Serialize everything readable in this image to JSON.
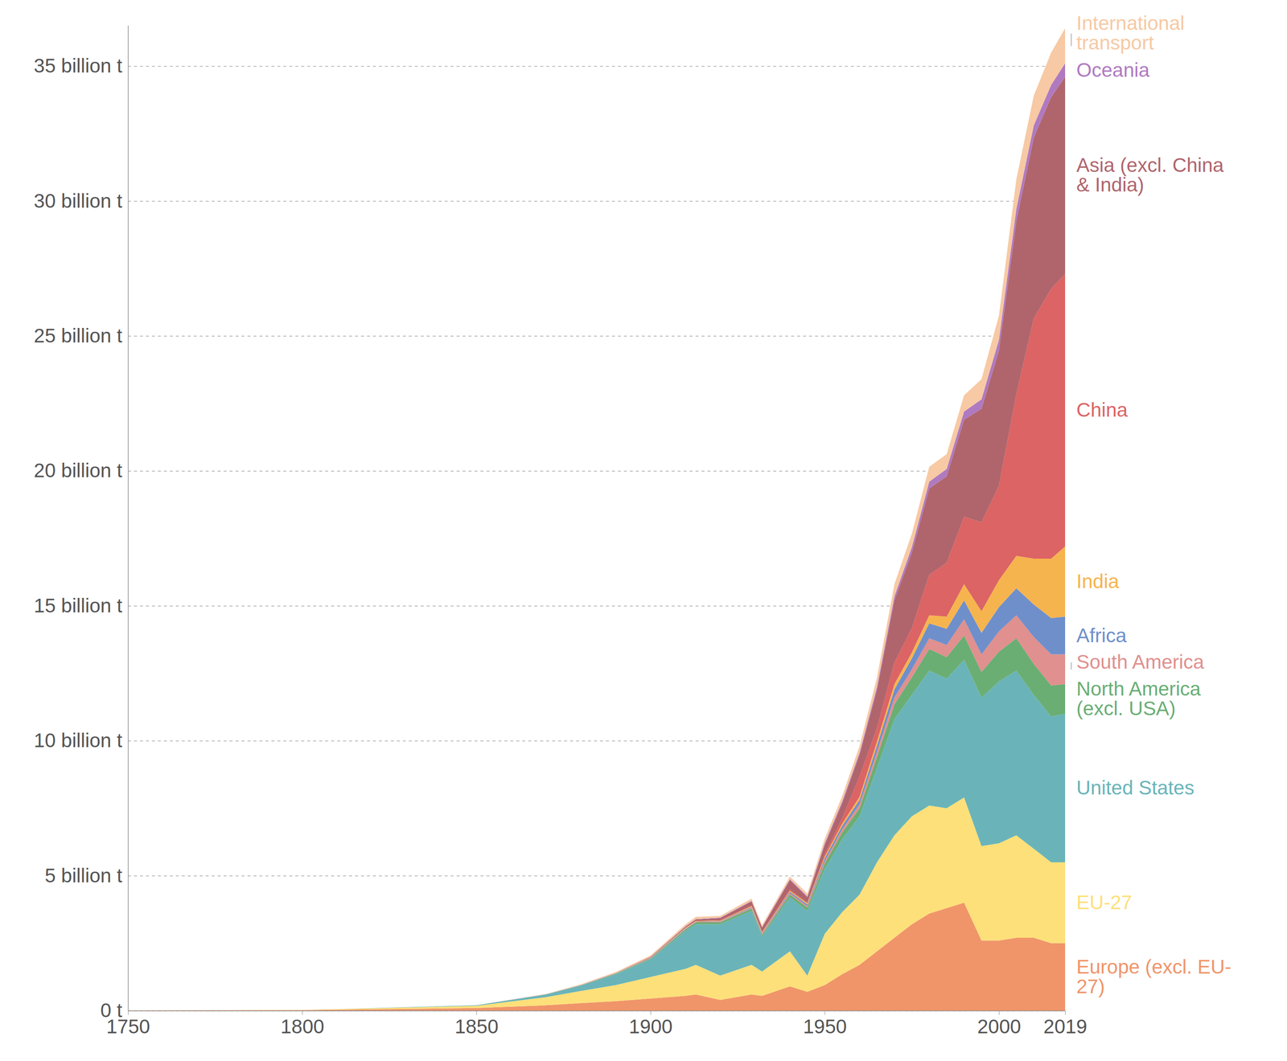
{
  "chart_data": {
    "type": "area",
    "stacked": true,
    "grid": true,
    "x": [
      1750,
      1800,
      1850,
      1870,
      1880,
      1890,
      1900,
      1910,
      1913,
      1920,
      1929,
      1932,
      1940,
      1945,
      1950,
      1955,
      1960,
      1965,
      1970,
      1975,
      1980,
      1985,
      1990,
      1995,
      2000,
      2005,
      2010,
      2015,
      2019
    ],
    "xlim": [
      1750,
      2019
    ],
    "xticks": [
      1750,
      1800,
      1850,
      1900,
      1950,
      2000,
      2019
    ],
    "ylim": [
      0,
      36500000000.0
    ],
    "yticks": [
      {
        "value": 0,
        "label": "0 t"
      },
      {
        "value": 5000000000.0,
        "label": "5 billion t"
      },
      {
        "value": 10000000000.0,
        "label": "10 billion t"
      },
      {
        "value": 15000000000.0,
        "label": "15 billion t"
      },
      {
        "value": 20000000000.0,
        "label": "20 billion t"
      },
      {
        "value": 25000000000.0,
        "label": "25 billion t"
      },
      {
        "value": 30000000000.0,
        "label": "30 billion t"
      },
      {
        "value": 35000000000.0,
        "label": "35 billion t"
      }
    ],
    "series": [
      {
        "name": "Europe (excl. EU-27)",
        "color": "#f0956a",
        "values": [
          9000000.0,
          20000000.0,
          100000000.0,
          200000000.0,
          280000000.0,
          350000000.0,
          450000000.0,
          550000000.0,
          600000000.0,
          400000000.0,
          600000000.0,
          550000000.0,
          900000000.0,
          700000000.0,
          950000000.0,
          1350000000.0,
          1700000000.0,
          2200000000.0,
          2700000000.0,
          3200000000.0,
          3600000000.0,
          3800000000.0,
          4000000000.0,
          2600000000.0,
          2600000000.0,
          2700000000.0,
          2700000000.0,
          2500000000.0,
          2500000000.0
        ]
      },
      {
        "name": "EU-27",
        "color": "#fde07a",
        "values": [
          0,
          5000000.0,
          80000000.0,
          300000000.0,
          450000000.0,
          600000000.0,
          800000000.0,
          1000000000.0,
          1100000000.0,
          900000000.0,
          1100000000.0,
          900000000.0,
          1300000000.0,
          600000000.0,
          1900000000.0,
          2300000000.0,
          2600000000.0,
          3300000000.0,
          3800000000.0,
          4000000000.0,
          4000000000.0,
          3700000000.0,
          3900000000.0,
          3500000000.0,
          3600000000.0,
          3800000000.0,
          3300000000.0,
          3000000000.0,
          3000000000.0
        ]
      },
      {
        "name": "United States",
        "color": "#6ab4b9",
        "values": [
          0,
          500000.0,
          20000000.0,
          100000000.0,
          200000000.0,
          400000000.0,
          650000000.0,
          1400000000.0,
          1500000000.0,
          1900000000.0,
          2000000000.0,
          1300000000.0,
          2000000000.0,
          2400000000.0,
          2400000000.0,
          2700000000.0,
          2900000000.0,
          3500000000.0,
          4300000000.0,
          4500000000.0,
          5000000000.0,
          4800000000.0,
          5100000000.0,
          5500000000.0,
          6000000000.0,
          6100000000.0,
          5700000000.0,
          5400000000.0,
          5500000000.0
        ]
      },
      {
        "name": "North America (excl. USA)",
        "color": "#6aae74",
        "values": [
          0,
          0,
          1000000.0,
          5000000.0,
          10000000.0,
          20000000.0,
          30000000.0,
          60000000.0,
          70000000.0,
          70000000.0,
          80000000.0,
          60000000.0,
          100000000.0,
          120000000.0,
          200000000.0,
          250000000.0,
          300000000.0,
          400000000.0,
          550000000.0,
          650000000.0,
          800000000.0,
          800000000.0,
          900000000.0,
          950000000.0,
          1100000000.0,
          1200000000.0,
          1150000000.0,
          1150000000.0,
          1100000000.0
        ]
      },
      {
        "name": "South America",
        "color": "#e0908e",
        "values": [
          0,
          0,
          0,
          1000000.0,
          3000000.0,
          5000000.0,
          10000000.0,
          15000000.0,
          15000000.0,
          20000000.0,
          30000000.0,
          30000000.0,
          50000000.0,
          60000000.0,
          90000000.0,
          120000000.0,
          150000000.0,
          200000000.0,
          250000000.0,
          300000000.0,
          400000000.0,
          450000000.0,
          600000000.0,
          650000000.0,
          750000000.0,
          850000000.0,
          1000000000.0,
          1150000000.0,
          1100000000.0
        ]
      },
      {
        "name": "Africa",
        "color": "#6f8fcb",
        "values": [
          0,
          0,
          0,
          1000000.0,
          3000000.0,
          5000000.0,
          10000000.0,
          15000000.0,
          15000000.0,
          20000000.0,
          30000000.0,
          30000000.0,
          50000000.0,
          60000000.0,
          100000000.0,
          120000000.0,
          160000000.0,
          220000000.0,
          300000000.0,
          400000000.0,
          550000000.0,
          600000000.0,
          700000000.0,
          800000000.0,
          900000000.0,
          1000000000.0,
          1200000000.0,
          1350000000.0,
          1400000000.0
        ]
      },
      {
        "name": "India",
        "color": "#f6b44f",
        "values": [
          0,
          0,
          0,
          1000000.0,
          3000000.0,
          5000000.0,
          10000000.0,
          20000000.0,
          20000000.0,
          20000000.0,
          30000000.0,
          30000000.0,
          40000000.0,
          40000000.0,
          70000000.0,
          90000000.0,
          120000000.0,
          160000000.0,
          200000000.0,
          220000000.0,
          300000000.0,
          450000000.0,
          600000000.0,
          800000000.0,
          1000000000.0,
          1200000000.0,
          1700000000.0,
          2200000000.0,
          2600000000.0
        ]
      },
      {
        "name": "China",
        "color": "#dc6464",
        "values": [
          0,
          0,
          0,
          0,
          0,
          0,
          5000000.0,
          10000000.0,
          10000000.0,
          20000000.0,
          30000000.0,
          30000000.0,
          50000000.0,
          20000000.0,
          80000000.0,
          200000000.0,
          750000000.0,
          500000000.0,
          800000000.0,
          900000000.0,
          1500000000.0,
          2000000000.0,
          2500000000.0,
          3300000000.0,
          3500000000.0,
          6000000000.0,
          8900000000.0,
          10000000000.0,
          10100000000.0
        ]
      },
      {
        "name": "Asia (excl. China & India)",
        "color": "#b0656c",
        "values": [
          0,
          0,
          0,
          1000000.0,
          3000000.0,
          10000000.0,
          20000000.0,
          40000000.0,
          50000000.0,
          80000000.0,
          150000000.0,
          150000000.0,
          350000000.0,
          200000000.0,
          350000000.0,
          550000000.0,
          800000000.0,
          1400000000.0,
          2300000000.0,
          2800000000.0,
          3200000000.0,
          3200000000.0,
          3600000000.0,
          4200000000.0,
          5000000000.0,
          6400000000.0,
          6700000000.0,
          7100000000.0,
          7300000000.0
        ]
      },
      {
        "name": "Oceania",
        "color": "#b07ac0",
        "values": [
          0,
          0,
          0,
          1000000.0,
          3000000.0,
          5000000.0,
          10000000.0,
          15000000.0,
          15000000.0,
          20000000.0,
          20000000.0,
          20000000.0,
          30000000.0,
          40000000.0,
          60000000.0,
          70000000.0,
          80000000.0,
          120000000.0,
          150000000.0,
          200000000.0,
          250000000.0,
          270000000.0,
          300000000.0,
          350000000.0,
          400000000.0,
          450000000.0,
          450000000.0,
          450000000.0,
          500000000.0
        ]
      },
      {
        "name": "International transport",
        "color": "#f7c9a4",
        "values": [
          0,
          0,
          0,
          10000000.0,
          20000000.0,
          30000000.0,
          50000000.0,
          70000000.0,
          80000000.0,
          60000000.0,
          80000000.0,
          70000000.0,
          100000000.0,
          100000000.0,
          170000000.0,
          200000000.0,
          250000000.0,
          350000000.0,
          450000000.0,
          500000000.0,
          550000000.0,
          550000000.0,
          600000000.0,
          750000000.0,
          900000000.0,
          1100000000.0,
          1100000000.0,
          1200000000.0,
          1300000000.0
        ]
      }
    ]
  }
}
